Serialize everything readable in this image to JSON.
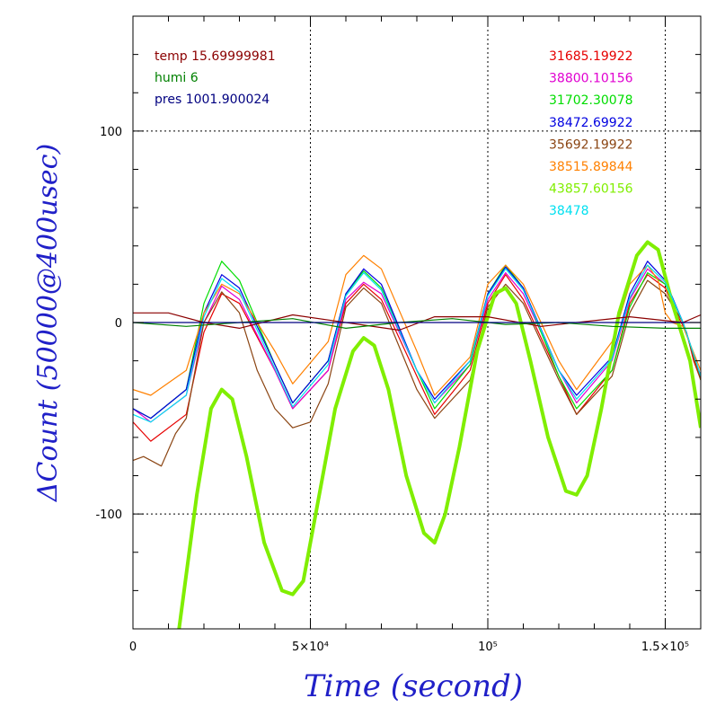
{
  "chart_data": {
    "type": "line",
    "xlabel": "Time (second)",
    "ylabel": "ΔCount (50000@400usec)",
    "xlim": [
      0,
      160000
    ],
    "ylim": [
      -160,
      160
    ],
    "x_ticks": [
      {
        "value": 0,
        "label": "0"
      },
      {
        "value": 50000,
        "label": "5×10⁴"
      },
      {
        "value": 100000,
        "label": "10⁵"
      },
      {
        "value": 150000,
        "label": "1.5×10⁵"
      }
    ],
    "y_ticks": [
      {
        "value": 100,
        "label": "100"
      },
      {
        "value": 0,
        "label": "0"
      },
      {
        "value": -100,
        "label": "-100"
      }
    ],
    "grid": true,
    "env_legend": [
      {
        "label": "temp 15.69999981",
        "color": "#8b0000"
      },
      {
        "label": "humi 6",
        "color": "#008000"
      },
      {
        "label": "pres 1001.900024",
        "color": "#000080"
      }
    ],
    "series": [
      {
        "name": "31685.19922",
        "color": "#e60000",
        "x": [
          0,
          5000,
          15000,
          20000,
          25000,
          30000,
          40000,
          45000,
          55000,
          60000,
          65000,
          70000,
          80000,
          85000,
          95000,
          100000,
          105000,
          110000,
          120000,
          125000,
          135000,
          140000,
          145000,
          150000,
          153000,
          156000,
          158000,
          160000
        ],
        "y": [
          -52,
          -62,
          -48,
          -5,
          15,
          10,
          -25,
          -45,
          -25,
          10,
          20,
          12,
          -28,
          -48,
          -25,
          10,
          25,
          12,
          -28,
          -48,
          -25,
          10,
          25,
          18,
          5,
          -5,
          -20,
          -30
        ]
      },
      {
        "name": "38800.10156",
        "color": "#e000d0",
        "x": [
          0,
          5000,
          15000,
          20000,
          25000,
          30000,
          40000,
          45000,
          55000,
          60000,
          65000,
          70000,
          80000,
          85000,
          95000,
          100000,
          105000,
          110000,
          120000,
          125000,
          135000,
          140000,
          145000,
          150000,
          155000,
          160000
        ],
        "y": [
          -45,
          -52,
          -38,
          0,
          19,
          12,
          -25,
          -45,
          -25,
          12,
          21,
          15,
          -25,
          -42,
          -22,
          12,
          26,
          15,
          -25,
          -42,
          -20,
          12,
          28,
          20,
          0,
          -28
        ]
      },
      {
        "name": "31702.30078",
        "color": "#00dd00",
        "x": [
          0,
          5000,
          15000,
          20000,
          25000,
          30000,
          40000,
          45000,
          55000,
          60000,
          65000,
          70000,
          80000,
          85000,
          95000,
          100000,
          105000,
          110000,
          120000,
          125000,
          135000,
          140000,
          145000,
          150000,
          155000,
          160000
        ],
        "y": [
          -45,
          -50,
          -35,
          10,
          32,
          22,
          -22,
          -42,
          -20,
          15,
          27,
          18,
          -25,
          -45,
          -22,
          15,
          30,
          18,
          -28,
          -45,
          -25,
          8,
          26,
          20,
          0,
          -30
        ]
      },
      {
        "name": "38472.69922",
        "color": "#0000e0",
        "x": [
          0,
          5000,
          15000,
          20000,
          25000,
          30000,
          40000,
          45000,
          55000,
          60000,
          65000,
          70000,
          80000,
          85000,
          95000,
          100000,
          105000,
          110000,
          120000,
          125000,
          135000,
          140000,
          145000,
          150000,
          155000,
          160000
        ],
        "y": [
          -45,
          -50,
          -35,
          5,
          25,
          18,
          -22,
          -42,
          -20,
          15,
          28,
          20,
          -25,
          -40,
          -20,
          15,
          29,
          18,
          -25,
          -38,
          -18,
          15,
          32,
          22,
          0,
          -28
        ]
      },
      {
        "name": "35692.19922",
        "color": "#8b4513",
        "x": [
          0,
          3000,
          8000,
          12000,
          15000,
          20000,
          25000,
          30000,
          35000,
          40000,
          45000,
          50000,
          55000,
          60000,
          65000,
          70000,
          80000,
          85000,
          95000,
          100000,
          105000,
          110000,
          120000,
          125000,
          135000,
          140000,
          145000,
          150000,
          155000,
          160000
        ],
        "y": [
          -72,
          -70,
          -75,
          -58,
          -50,
          0,
          16,
          5,
          -25,
          -45,
          -55,
          -52,
          -32,
          8,
          18,
          10,
          -35,
          -50,
          -30,
          8,
          20,
          10,
          -30,
          -48,
          -28,
          5,
          22,
          15,
          0,
          -30
        ]
      },
      {
        "name": "38515.89844",
        "color": "#ff8000",
        "x": [
          0,
          5000,
          15000,
          20000,
          25000,
          30000,
          40000,
          45000,
          55000,
          60000,
          65000,
          70000,
          80000,
          85000,
          95000,
          100000,
          105000,
          110000,
          120000,
          125000,
          135000,
          140000,
          145000,
          148000,
          150000,
          152000,
          155000,
          160000
        ],
        "y": [
          -35,
          -38,
          -25,
          5,
          20,
          15,
          -15,
          -32,
          -10,
          25,
          35,
          28,
          -15,
          -38,
          -18,
          20,
          30,
          20,
          -20,
          -35,
          -10,
          20,
          30,
          22,
          5,
          0,
          -2,
          -25
        ]
      },
      {
        "name": "43857.60156",
        "color": "#80ee00",
        "x": [
          13000,
          18000,
          22000,
          25000,
          28000,
          32000,
          37000,
          42000,
          45000,
          48000,
          52000,
          57000,
          62000,
          65000,
          68000,
          72000,
          77000,
          82000,
          85000,
          88000,
          92000,
          97000,
          102000,
          105000,
          108000,
          112000,
          117000,
          122000,
          125000,
          128000,
          132000,
          137000,
          142000,
          145000,
          148000,
          152000,
          157000,
          160000
        ],
        "y": [
          -160,
          -90,
          -45,
          -35,
          -40,
          -70,
          -115,
          -140,
          -142,
          -135,
          -95,
          -45,
          -15,
          -8,
          -12,
          -35,
          -80,
          -110,
          -115,
          -100,
          -65,
          -15,
          15,
          18,
          10,
          -20,
          -60,
          -88,
          -90,
          -80,
          -45,
          5,
          35,
          42,
          38,
          10,
          -20,
          -55
        ]
      },
      {
        "name": "38478",
        "color": "#00e0f0",
        "x": [
          0,
          5000,
          15000,
          20000,
          25000,
          30000,
          40000,
          45000,
          55000,
          60000,
          65000,
          70000,
          80000,
          85000,
          95000,
          100000,
          105000,
          110000,
          120000,
          125000,
          135000,
          140000,
          145000,
          150000,
          155000,
          160000
        ],
        "y": [
          -48,
          -52,
          -38,
          3,
          23,
          16,
          -24,
          -44,
          -22,
          14,
          26,
          17,
          -25,
          -42,
          -20,
          14,
          28,
          17,
          -25,
          -40,
          -19,
          13,
          30,
          21,
          0,
          -28
        ]
      },
      {
        "name": "",
        "color": "#8b0000",
        "x": [
          0,
          10000,
          20000,
          30000,
          45000,
          60000,
          75000,
          85000,
          100000,
          115000,
          125000,
          140000,
          155000,
          160000
        ],
        "y": [
          5,
          5,
          0,
          -3,
          4,
          0,
          -4,
          3,
          3,
          -2,
          0,
          3,
          0,
          4
        ]
      },
      {
        "name": "",
        "color": "#008000",
        "x": [
          0,
          15000,
          30000,
          45000,
          60000,
          75000,
          90000,
          105000,
          120000,
          135000,
          150000,
          160000
        ],
        "y": [
          0,
          -2,
          0,
          2,
          -3,
          0,
          2,
          -1,
          0,
          -2,
          -3,
          -3
        ]
      },
      {
        "name": "",
        "color": "#000080",
        "x": [
          0,
          40000,
          80000,
          120000,
          160000
        ],
        "y": [
          0,
          0,
          0,
          0,
          0
        ]
      }
    ]
  }
}
